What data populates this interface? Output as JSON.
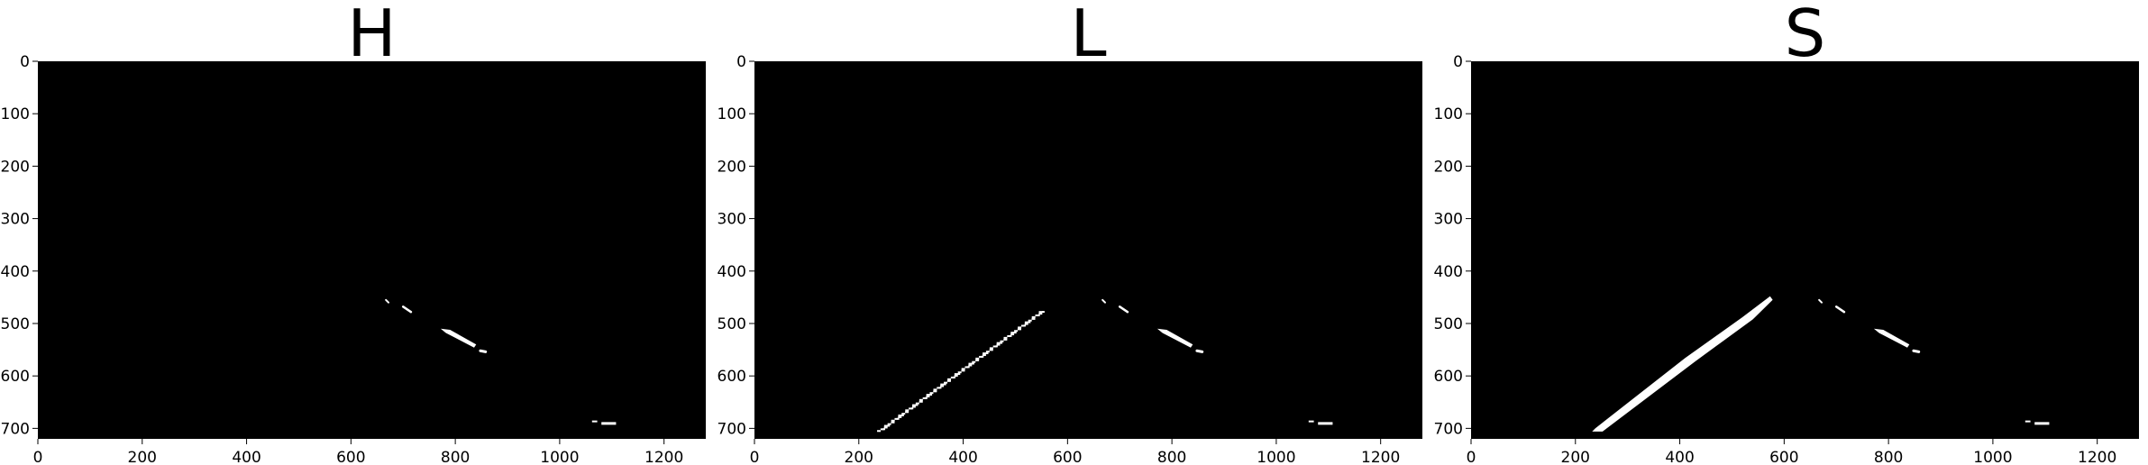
{
  "figure": {
    "background": "#ffffff",
    "image_background": "#000000",
    "mask_color": "#ffffff"
  },
  "panels": [
    {
      "title": "H",
      "x_ticks": [
        "0",
        "200",
        "400",
        "600",
        "800",
        "1000",
        "1200"
      ],
      "y_ticks": [
        "0",
        "100",
        "200",
        "300",
        "400",
        "500",
        "600",
        "700"
      ],
      "x_range": [
        0,
        1280
      ],
      "y_range": [
        0,
        720
      ],
      "features": [
        "right-lane-dashes",
        "bottom-right-blob"
      ]
    },
    {
      "title": "L",
      "x_ticks": [
        "0",
        "200",
        "400",
        "600",
        "800",
        "1000",
        "1200"
      ],
      "y_ticks": [
        "0",
        "100",
        "200",
        "300",
        "400",
        "500",
        "600",
        "700"
      ],
      "x_range": [
        0,
        1280
      ],
      "y_range": [
        0,
        720
      ],
      "features": [
        "left-lane-dotted",
        "right-lane-dashes",
        "bottom-right-blob"
      ]
    },
    {
      "title": "S",
      "x_ticks": [
        "0",
        "200",
        "400",
        "600",
        "800",
        "1000",
        "1200"
      ],
      "y_ticks": [
        "0",
        "100",
        "200",
        "300",
        "400",
        "500",
        "600",
        "700"
      ],
      "x_range": [
        0,
        1280
      ],
      "y_range": [
        0,
        720
      ],
      "features": [
        "left-lane-solid",
        "right-lane-dashes",
        "bottom-right-blob"
      ]
    }
  ]
}
